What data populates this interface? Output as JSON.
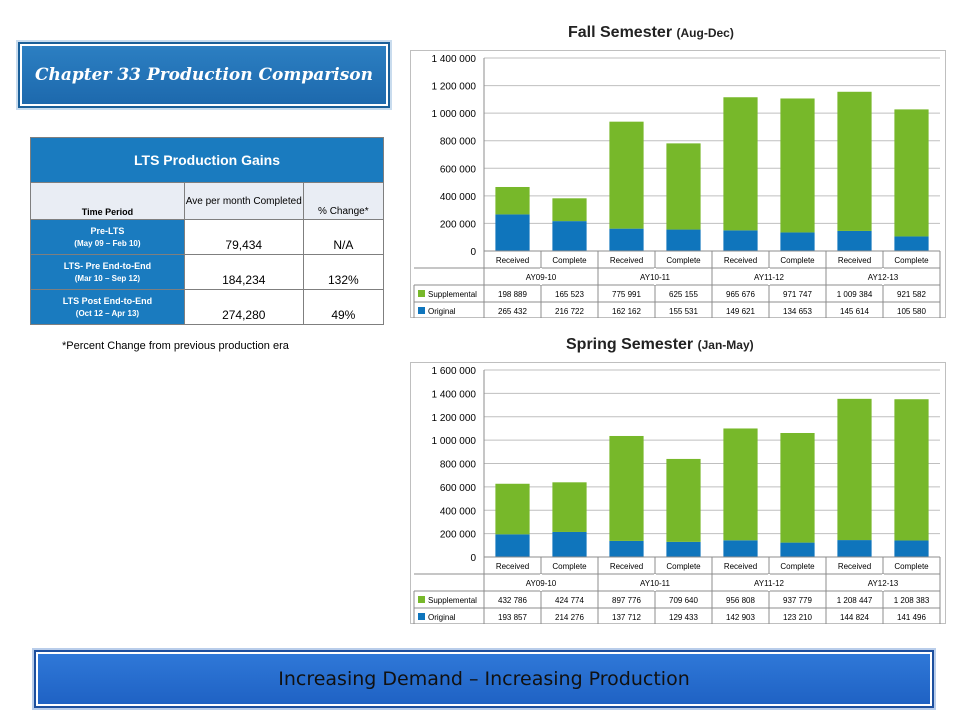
{
  "heading": "Chapter 33 Production Comparison",
  "table": {
    "title": "LTS Production Gains",
    "col_period": "Time Period",
    "col_avg": "Ave per month Completed",
    "col_change": "% Change*",
    "rows": [
      {
        "period": "Pre-LTS",
        "range": "(May 09 – Feb 10)",
        "avg": "79,434",
        "change": "N/A"
      },
      {
        "period": "LTS- Pre End-to-End",
        "range": "(Mar 10 – Sep 12)",
        "avg": "184,234",
        "change": "132%"
      },
      {
        "period": "LTS Post End-to-End",
        "range": "(Oct 12 – Apr 13)",
        "avg": "274,280",
        "change": "49%"
      }
    ],
    "footnote": "*Percent Change from previous production era"
  },
  "fall_title": "Fall Semester",
  "fall_subtitle": "(Aug-Dec)",
  "spring_title": "Spring Semester",
  "spring_subtitle": "(Jan-May)",
  "banner": "Increasing Demand – Increasing Production",
  "colors": {
    "original": "#0f75bc",
    "supplemental": "#77b82a"
  },
  "chart_data": [
    {
      "type": "bar",
      "stacked": true,
      "title": "Fall Semester (Aug-Dec)",
      "categories": [
        "Received",
        "Complete",
        "Received",
        "Complete",
        "Received",
        "Complete",
        "Received",
        "Complete"
      ],
      "groups": [
        "AY09-10",
        "AY10-11",
        "AY11-12",
        "AY12-13"
      ],
      "ylim": [
        0,
        1400000
      ],
      "yticks": [
        "0",
        "200 000",
        "400 000",
        "600 000",
        "800 000",
        "1 000 000",
        "1 200 000",
        "1 400 000"
      ],
      "series": [
        {
          "name": "Supplemental",
          "values": [
            198889,
            165523,
            775991,
            625155,
            965676,
            971747,
            1009384,
            921582
          ],
          "labels": [
            "198 889",
            "165 523",
            "775 991",
            "625 155",
            "965 676",
            "971 747",
            "1 009 384",
            "921 582"
          ]
        },
        {
          "name": "Original",
          "values": [
            265432,
            216722,
            162162,
            155531,
            149621,
            134653,
            145614,
            105580
          ],
          "labels": [
            "265 432",
            "216 722",
            "162 162",
            "155 531",
            "149 621",
            "134 653",
            "145 614",
            "105 580"
          ]
        }
      ]
    },
    {
      "type": "bar",
      "stacked": true,
      "title": "Spring Semester (Jan-May)",
      "categories": [
        "Received",
        "Complete",
        "Received",
        "Complete",
        "Received",
        "Complete",
        "Received",
        "Complete"
      ],
      "groups": [
        "AY09-10",
        "AY10-11",
        "AY11-12",
        "AY12-13"
      ],
      "ylim": [
        0,
        1600000
      ],
      "yticks": [
        "0",
        "200 000",
        "400 000",
        "600 000",
        "800 000",
        "1 000 000",
        "1 200 000",
        "1 400 000",
        "1 600 000"
      ],
      "series": [
        {
          "name": "Supplemental",
          "values": [
            432786,
            424774,
            897776,
            709640,
            956808,
            937779,
            1208447,
            1208383
          ],
          "labels": [
            "432 786",
            "424 774",
            "897 776",
            "709 640",
            "956 808",
            "937 779",
            "1 208 447",
            "1 208 383"
          ]
        },
        {
          "name": "Original",
          "values": [
            193857,
            214276,
            137712,
            129433,
            142903,
            123210,
            144824,
            141496
          ],
          "labels": [
            "193 857",
            "214 276",
            "137 712",
            "129 433",
            "142 903",
            "123 210",
            "144 824",
            "141 496"
          ]
        }
      ]
    }
  ]
}
